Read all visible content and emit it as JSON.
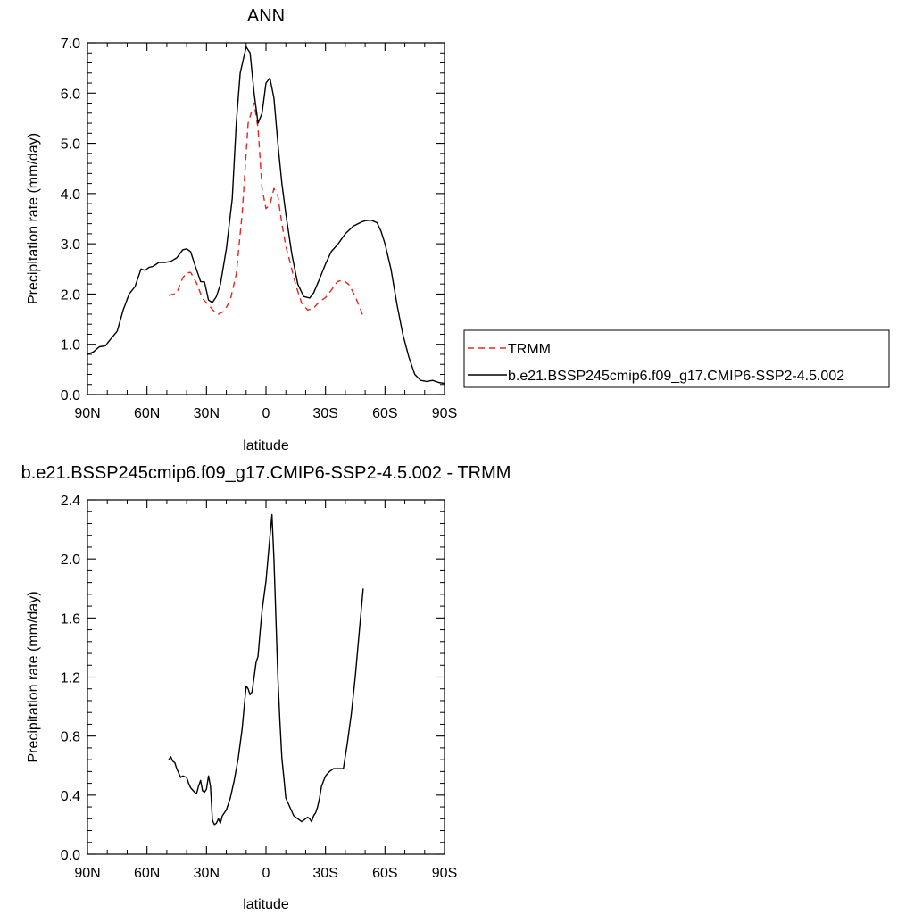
{
  "chart_data": [
    {
      "type": "line",
      "title": "ANN",
      "xlabel": "latitude",
      "ylabel": "Precipitation rate (mm/day)",
      "xlim": [
        90,
        -90
      ],
      "ylim": [
        0.0,
        7.0
      ],
      "x_unit_note": "latitude in degrees, positive = N, negative = S",
      "xtick_values": [
        90,
        60,
        30,
        0,
        -30,
        -60,
        -90
      ],
      "xtick_labels": [
        "90N",
        "60N",
        "30N",
        "0",
        "30S",
        "60S",
        "90S"
      ],
      "ytick_values": [
        0,
        1,
        2,
        3,
        4,
        5,
        6,
        7
      ],
      "ytick_labels": [
        "0.0",
        "1.0",
        "2.0",
        "3.0",
        "4.0",
        "5.0",
        "6.0",
        "7.0"
      ],
      "legend_position": "right",
      "series": [
        {
          "name": "TRMM",
          "color": "#e8231e",
          "dash": "dashed",
          "x": [
            49,
            45,
            42,
            40,
            38,
            35,
            32,
            29,
            26,
            24,
            21,
            18,
            15,
            12,
            9,
            6,
            4,
            2,
            0,
            -2,
            -4,
            -6,
            -8,
            -10,
            -12,
            -15,
            -18,
            -21,
            -24,
            -27,
            -30,
            -33,
            -36,
            -39,
            -42,
            -45,
            -48,
            -49
          ],
          "values": [
            1.97,
            2.02,
            2.32,
            2.42,
            2.43,
            2.22,
            1.91,
            1.78,
            1.65,
            1.6,
            1.66,
            1.88,
            2.4,
            3.6,
            5.4,
            5.8,
            5.3,
            4.1,
            3.7,
            3.78,
            4.1,
            3.95,
            3.4,
            2.95,
            2.65,
            2.18,
            1.82,
            1.68,
            1.72,
            1.85,
            1.93,
            2.08,
            2.25,
            2.28,
            2.18,
            1.95,
            1.66,
            1.55
          ]
        },
        {
          "name": "b.e21.BSSP245cmip6.f09_g17.CMIP6-SSP2-4.5.002",
          "color": "#000000",
          "dash": "solid",
          "x": [
            90,
            87,
            84,
            81,
            78,
            75,
            72,
            69,
            66,
            63,
            61,
            59,
            57,
            54,
            51,
            48,
            45,
            42,
            40,
            38,
            36,
            33,
            31,
            29,
            27,
            25,
            23,
            20,
            17,
            15,
            13,
            10,
            8,
            6,
            4,
            2,
            0,
            -2,
            -4,
            -6,
            -8,
            -10,
            -13,
            -16,
            -19,
            -22,
            -24,
            -27,
            -30,
            -33,
            -36,
            -40,
            -44,
            -48,
            -50,
            -53,
            -56,
            -58,
            -60,
            -63,
            -66,
            -69,
            -72,
            -75,
            -78,
            -81,
            -84,
            -87,
            -90
          ],
          "values": [
            0.8,
            0.85,
            0.95,
            0.97,
            1.12,
            1.26,
            1.68,
            2.0,
            2.15,
            2.5,
            2.47,
            2.53,
            2.55,
            2.63,
            2.63,
            2.65,
            2.72,
            2.88,
            2.9,
            2.84,
            2.6,
            2.25,
            2.24,
            1.88,
            1.83,
            1.95,
            2.19,
            2.9,
            3.9,
            5.4,
            6.4,
            6.92,
            6.8,
            6.0,
            5.4,
            5.6,
            6.2,
            6.3,
            5.9,
            5.0,
            4.2,
            3.6,
            2.8,
            2.2,
            1.95,
            1.92,
            2.02,
            2.3,
            2.6,
            2.85,
            2.98,
            3.2,
            3.35,
            3.43,
            3.46,
            3.47,
            3.42,
            3.25,
            3.0,
            2.5,
            1.8,
            1.2,
            0.75,
            0.4,
            0.28,
            0.26,
            0.28,
            0.24,
            0.22
          ]
        }
      ]
    },
    {
      "type": "line",
      "title": "b.e21.BSSP245cmip6.f09_g17.CMIP6-SSP2-4.5.002 - TRMM",
      "xlabel": "latitude",
      "ylabel": "Precipitation rate (mm/day)",
      "xlim": [
        90,
        -90
      ],
      "ylim": [
        0.0,
        2.4
      ],
      "xtick_values": [
        90,
        60,
        30,
        0,
        -30,
        -60,
        -90
      ],
      "xtick_labels": [
        "90N",
        "60N",
        "30N",
        "0",
        "30S",
        "60S",
        "90S"
      ],
      "ytick_values": [
        0.0,
        0.4,
        0.8,
        1.2,
        1.6,
        2.0,
        2.4
      ],
      "ytick_labels": [
        "0.0",
        "0.4",
        "0.8",
        "1.2",
        "1.6",
        "2.0",
        "2.4"
      ],
      "series": [
        {
          "color": "#000000",
          "dash": "solid",
          "x": [
            49,
            48,
            47,
            46,
            45,
            43,
            42,
            40,
            39,
            38,
            36,
            35,
            34,
            33,
            32,
            31,
            30,
            29,
            28,
            27,
            26,
            25,
            24,
            23,
            22,
            20,
            18,
            16,
            14,
            12,
            11,
            10,
            9,
            8,
            7,
            6,
            5,
            4,
            3,
            2,
            1,
            0,
            -1,
            -2,
            -3,
            -4,
            -5,
            -6,
            -7,
            -8,
            -9,
            -10,
            -12,
            -14,
            -16,
            -18,
            -20,
            -21,
            -22,
            -23,
            -24,
            -25,
            -26,
            -27,
            -28,
            -30,
            -32,
            -34,
            -36,
            -37,
            -39,
            -41,
            -43,
            -45,
            -47,
            -49
          ],
          "values": [
            0.64,
            0.66,
            0.63,
            0.62,
            0.58,
            0.52,
            0.53,
            0.52,
            0.48,
            0.45,
            0.42,
            0.41,
            0.46,
            0.5,
            0.43,
            0.42,
            0.44,
            0.53,
            0.46,
            0.23,
            0.2,
            0.21,
            0.24,
            0.21,
            0.26,
            0.3,
            0.38,
            0.5,
            0.65,
            0.85,
            1.0,
            1.14,
            1.12,
            1.08,
            1.1,
            1.2,
            1.3,
            1.34,
            1.5,
            1.65,
            1.75,
            1.85,
            2.0,
            2.15,
            2.3,
            2.0,
            1.6,
            1.2,
            0.9,
            0.65,
            0.52,
            0.38,
            0.32,
            0.26,
            0.24,
            0.22,
            0.24,
            0.25,
            0.24,
            0.22,
            0.26,
            0.28,
            0.32,
            0.38,
            0.46,
            0.53,
            0.56,
            0.58,
            0.58,
            0.58,
            0.58,
            0.75,
            0.95,
            1.2,
            1.5,
            1.8
          ]
        }
      ]
    }
  ]
}
